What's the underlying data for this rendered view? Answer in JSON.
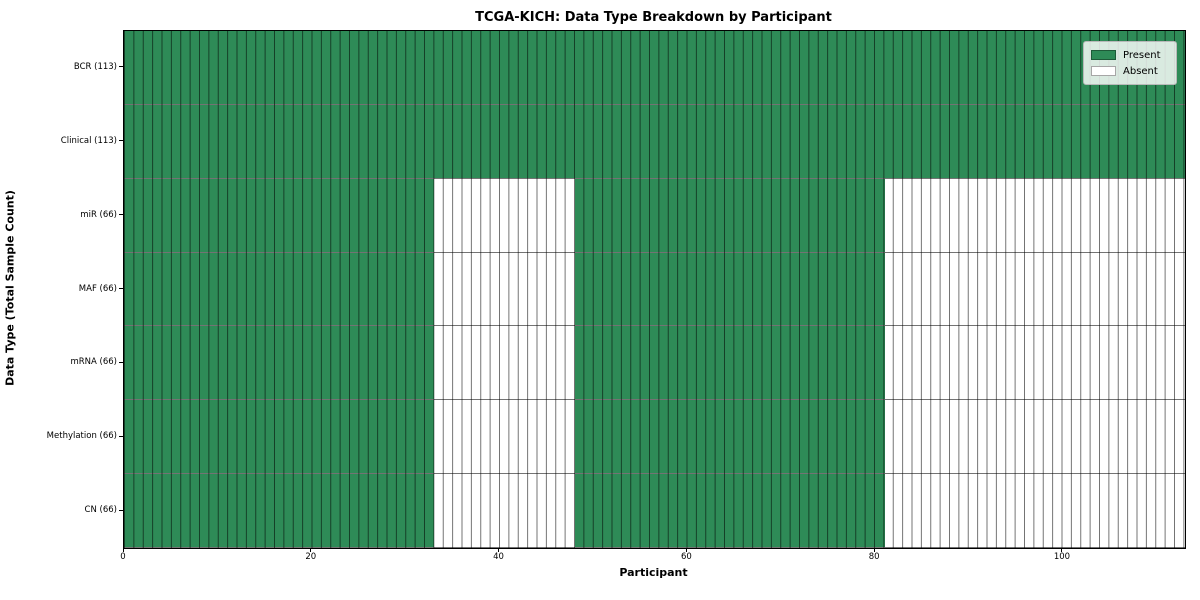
{
  "figure": {
    "background_color": "#ffffff"
  },
  "chart_data": {
    "type": "heatmap",
    "title": "TCGA-KICH: Data Type Breakdown by Participant",
    "xlabel": "Participant",
    "ylabel": "Data Type (Total Sample Count)",
    "x_range": [
      0,
      113
    ],
    "x_ticks": [
      0,
      20,
      40,
      60,
      80,
      100
    ],
    "n_participants": 113,
    "cell_edge_color": "rgba(0,0,0,0.55)",
    "legend": {
      "position": "upper right",
      "entries": [
        {
          "label": "Present",
          "color": "#2e8b57"
        },
        {
          "label": "Absent",
          "color": "#ffffff"
        }
      ]
    },
    "rows": [
      {
        "label": "BCR (113)",
        "total_samples": 113,
        "present_runs": [
          [
            0,
            113
          ]
        ]
      },
      {
        "label": "Clinical (113)",
        "total_samples": 113,
        "present_runs": [
          [
            0,
            113
          ]
        ]
      },
      {
        "label": "miR (66)",
        "total_samples": 66,
        "present_runs": [
          [
            0,
            33
          ],
          [
            48,
            81
          ]
        ]
      },
      {
        "label": "MAF (66)",
        "total_samples": 66,
        "present_runs": [
          [
            0,
            33
          ],
          [
            48,
            81
          ]
        ]
      },
      {
        "label": "mRNA (66)",
        "total_samples": 66,
        "present_runs": [
          [
            0,
            33
          ],
          [
            48,
            81
          ]
        ]
      },
      {
        "label": "Methylation (66)",
        "total_samples": 66,
        "present_runs": [
          [
            0,
            33
          ],
          [
            48,
            81
          ]
        ]
      },
      {
        "label": "CN (66)",
        "total_samples": 66,
        "present_runs": [
          [
            0,
            33
          ],
          [
            48,
            81
          ]
        ]
      }
    ]
  }
}
